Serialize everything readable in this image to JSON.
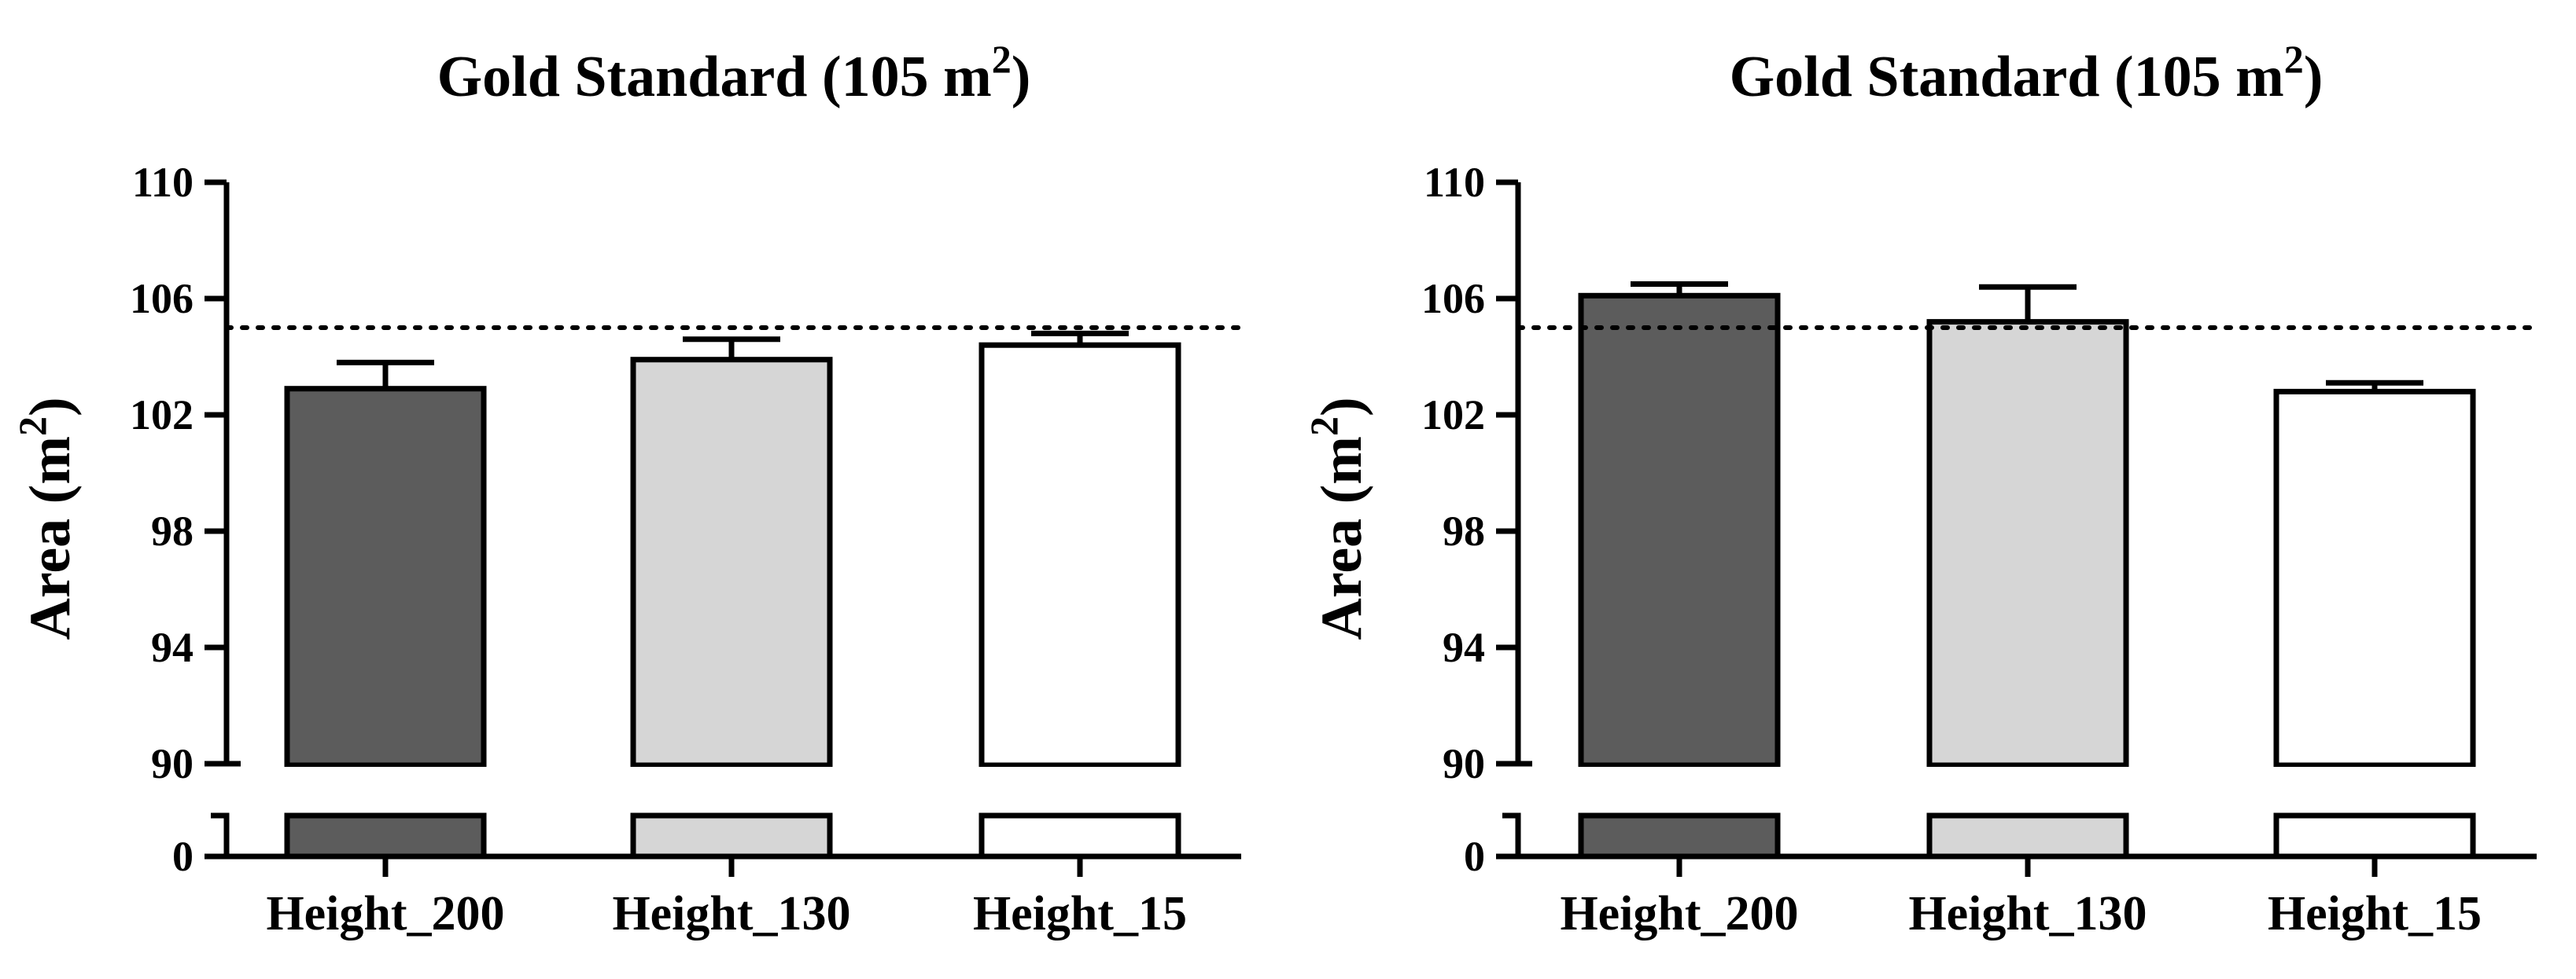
{
  "colors": {
    "dark_bar": "#5c5c5c",
    "light_bar": "#d6d6d6",
    "white_bar": "#ffffff",
    "axis": "#000000"
  },
  "chart_data": [
    {
      "type": "bar",
      "title": "Gold Standard (105 m",
      "title_superscript": "2",
      "title_suffix": ")",
      "ylabel": "Area (m",
      "ylabel_superscript": "2",
      "ylabel_suffix": ")",
      "categories": [
        "Height_200",
        "Height_130",
        "Height_15"
      ],
      "values": [
        102.9,
        103.9,
        104.4
      ],
      "error_upper": [
        103.8,
        104.6,
        104.8
      ],
      "bar_colors": [
        "dark",
        "light",
        "white"
      ],
      "reference_line": 105,
      "ylim": [
        90,
        110
      ],
      "yticks": [
        90,
        94,
        98,
        102,
        106,
        110
      ],
      "ytick_labels": [
        "90",
        "94",
        "98",
        "102",
        "106",
        "110"
      ],
      "axis_break": true,
      "break_lower_tick": 0,
      "break_lower_label": "0"
    },
    {
      "type": "bar",
      "title": "Gold Standard (105 m",
      "title_superscript": "2",
      "title_suffix": ")",
      "ylabel": "Area (m",
      "ylabel_superscript": "2",
      "ylabel_suffix": ")",
      "categories": [
        "Height_200",
        "Height_130",
        "Height_15"
      ],
      "values": [
        106.1,
        105.2,
        102.8
      ],
      "error_upper": [
        106.5,
        106.4,
        103.1
      ],
      "bar_colors": [
        "dark",
        "light",
        "white"
      ],
      "reference_line": 105,
      "ylim": [
        90,
        110
      ],
      "yticks": [
        90,
        94,
        98,
        102,
        106,
        110
      ],
      "ytick_labels": [
        "90",
        "94",
        "98",
        "102",
        "106",
        "110"
      ],
      "axis_break": true,
      "break_lower_tick": 0,
      "break_lower_label": "0"
    }
  ]
}
